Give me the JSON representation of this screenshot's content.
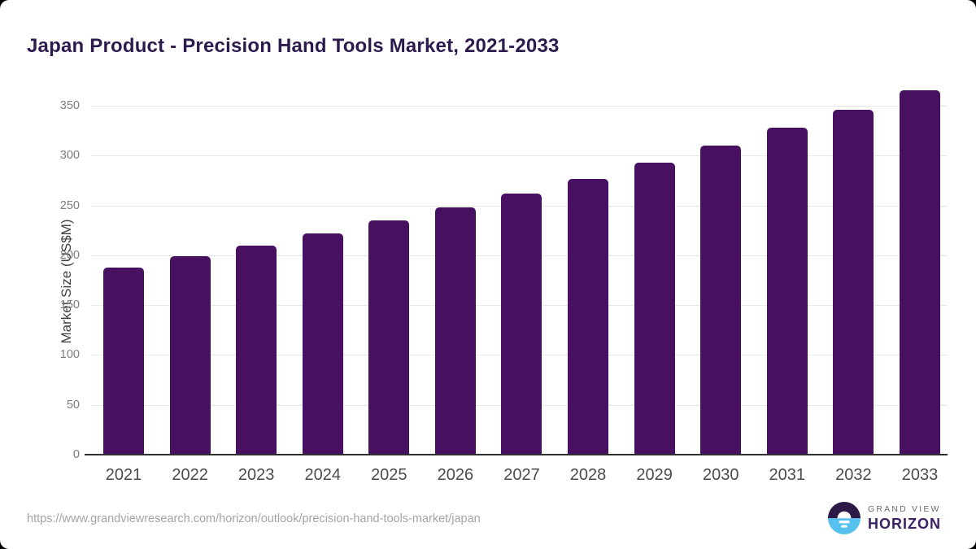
{
  "header": {
    "title": "Japan Product - Precision Hand Tools Market, 2021-2033"
  },
  "chart_data": {
    "type": "bar",
    "title": "Japan Product - Precision Hand Tools Market, 2021-2033",
    "categories": [
      "2021",
      "2022",
      "2023",
      "2024",
      "2025",
      "2026",
      "2027",
      "2028",
      "2029",
      "2030",
      "2031",
      "2032",
      "2033"
    ],
    "values": [
      187,
      198,
      209,
      221,
      234,
      247,
      261,
      276,
      292,
      309,
      327,
      345,
      365
    ],
    "xlabel": "",
    "ylabel": "Market Size (US$M)",
    "ylim": [
      0,
      350
    ],
    "ytick_step": 50,
    "grid": true,
    "legend": false,
    "bar_color": "#481061"
  },
  "axis_style": {
    "gridline_color": "#e7e7e7",
    "axis_line_color": "#2f2f2f",
    "ytick_color": "#7d7d7d",
    "xtick_color": "#4c4c4c"
  },
  "footer": {
    "source_url": "https://www.grandviewresearch.com/horizon/outlook/precision-hand-tools-market/japan",
    "logo": {
      "line1": "GRAND VIEW",
      "line2": "HORIZON",
      "icon": "horizon-sun-icon",
      "icon_purple": "#2d1b47",
      "icon_blue": "#56c0ee"
    }
  }
}
